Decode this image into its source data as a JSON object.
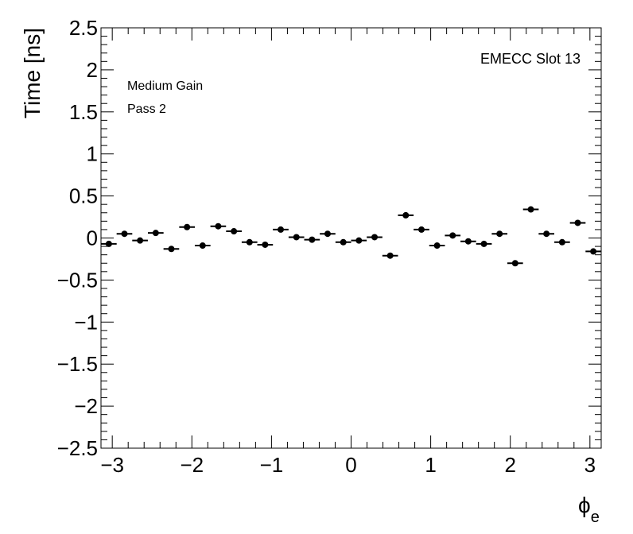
{
  "chart_data": {
    "type": "scatter",
    "title": "",
    "xlabel": "ϕ",
    "xlabel_subscript": "e",
    "ylabel": "Time [ns]",
    "xlim": [
      -3.14159,
      3.14159
    ],
    "ylim": [
      -2.5,
      2.5
    ],
    "grid": false,
    "error_bar_color": "#000000",
    "marker_color": "#000000",
    "x_ticks": [
      {
        "v": -3,
        "label": "−3"
      },
      {
        "v": -2,
        "label": "−2"
      },
      {
        "v": -1,
        "label": "−1"
      },
      {
        "v": 0,
        "label": "0"
      },
      {
        "v": 1,
        "label": "1"
      },
      {
        "v": 2,
        "label": "2"
      },
      {
        "v": 3,
        "label": "3"
      }
    ],
    "y_ticks": [
      {
        "v": 2.5,
        "label": "2.5"
      },
      {
        "v": 2,
        "label": "2"
      },
      {
        "v": 1.5,
        "label": "1.5"
      },
      {
        "v": 1,
        "label": "1"
      },
      {
        "v": 0.5,
        "label": "0.5"
      },
      {
        "v": 0,
        "label": "0"
      },
      {
        "v": -0.5,
        "label": "−0.5"
      },
      {
        "v": -1,
        "label": "−1"
      },
      {
        "v": -1.5,
        "label": "−1.5"
      },
      {
        "v": -2,
        "label": "−2"
      },
      {
        "v": -2.5,
        "label": "−2.5"
      }
    ],
    "annotations": {
      "slot": "EMECC Slot 13",
      "gain": "Medium Gain",
      "pass": "Pass 2"
    },
    "series": [
      {
        "bin_halfwidth": 0.0982,
        "x": [
          -3.043,
          -2.847,
          -2.651,
          -2.454,
          -2.258,
          -2.061,
          -1.865,
          -1.669,
          -1.472,
          -1.276,
          -1.08,
          -0.884,
          -0.687,
          -0.491,
          -0.295,
          -0.098,
          0.098,
          0.295,
          0.491,
          0.687,
          0.884,
          1.08,
          1.276,
          1.472,
          1.669,
          1.865,
          2.061,
          2.258,
          2.454,
          2.651,
          2.847,
          3.043
        ],
        "y": [
          -0.07,
          0.05,
          -0.03,
          0.06,
          -0.13,
          0.13,
          -0.09,
          0.14,
          0.08,
          -0.05,
          -0.08,
          0.1,
          0.01,
          -0.02,
          0.05,
          -0.05,
          -0.03,
          0.01,
          -0.21,
          0.27,
          0.1,
          -0.09,
          0.03,
          -0.04,
          -0.07,
          0.05,
          -0.3,
          0.34,
          0.05,
          -0.05,
          0.18,
          -0.16
        ]
      }
    ]
  }
}
